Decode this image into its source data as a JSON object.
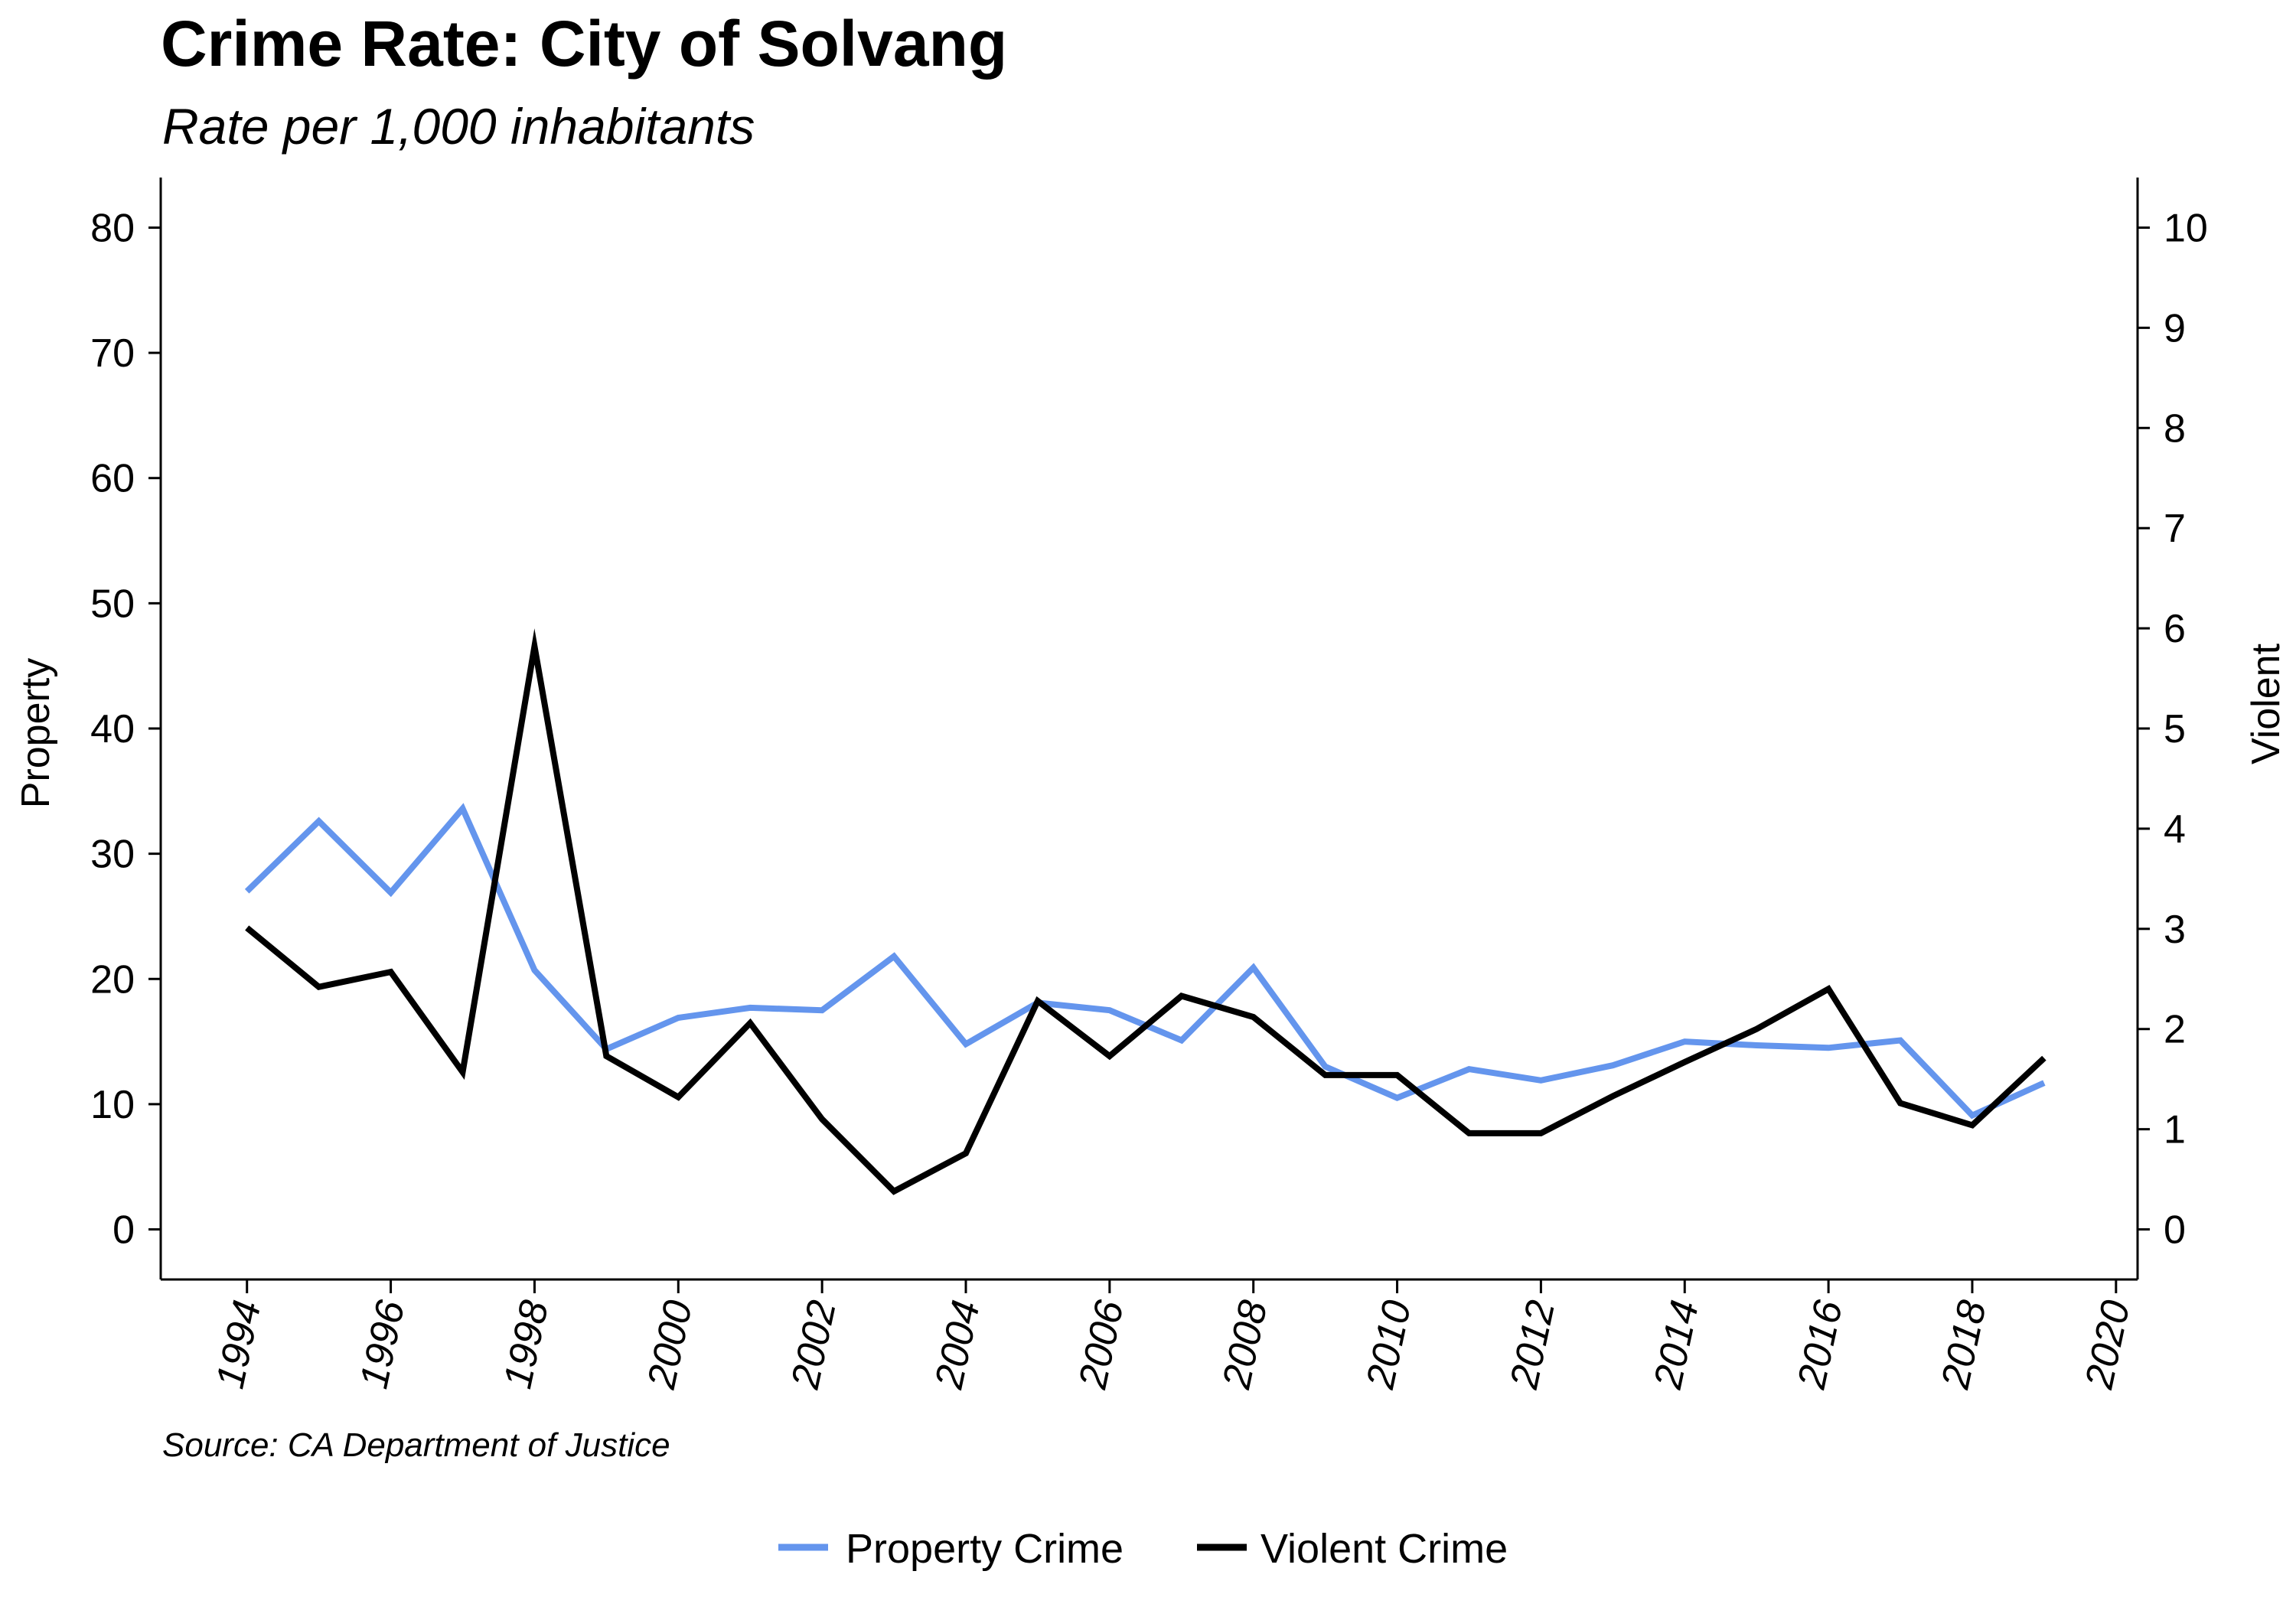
{
  "chart_data": {
    "type": "line",
    "title": "Crime Rate: City of Solvang",
    "subtitle": "Rate per 1,000 inhabitants",
    "source": "Source: CA Department of Justice",
    "ylabel_left": "Property",
    "ylabel_right": "Violent",
    "ylim_left": [
      -4,
      84
    ],
    "ylim_right": [
      -0.5,
      10.5
    ],
    "yticks_left": [
      0,
      10,
      20,
      30,
      40,
      50,
      60,
      70,
      80
    ],
    "yticks_right": [
      0,
      1,
      2,
      3,
      4,
      5,
      6,
      7,
      8,
      9,
      10
    ],
    "xlim": [
      1992.8,
      2020.3
    ],
    "xticks": [
      1994,
      1996,
      1998,
      2000,
      2002,
      2004,
      2006,
      2008,
      2010,
      2012,
      2014,
      2016,
      2018,
      2020
    ],
    "x": [
      1994,
      1995,
      1996,
      1997,
      1998,
      1999,
      2000,
      2001,
      2002,
      2003,
      2004,
      2005,
      2006,
      2007,
      2008,
      2009,
      2010,
      2011,
      2012,
      2013,
      2014,
      2015,
      2016,
      2017,
      2018,
      2019
    ],
    "series": [
      {
        "name": "Property Crime",
        "axis": "left",
        "color": "#6495ed",
        "values": [
          27.0,
          32.6,
          26.9,
          33.6,
          20.7,
          14.4,
          16.9,
          17.7,
          17.5,
          21.8,
          14.8,
          18.1,
          17.5,
          15.1,
          20.9,
          13.0,
          10.5,
          12.8,
          11.9,
          13.1,
          15.0,
          14.7,
          14.5,
          15.1,
          9.1,
          11.7
        ]
      },
      {
        "name": "Violent Crime",
        "axis": "right",
        "color": "#000000",
        "values": [
          3.01,
          2.42,
          2.57,
          1.57,
          5.82,
          1.73,
          1.32,
          2.06,
          1.1,
          0.38,
          0.76,
          2.28,
          1.73,
          2.33,
          2.12,
          1.54,
          1.54,
          0.96,
          0.96,
          1.33,
          1.67,
          2.0,
          2.4,
          1.26,
          1.04,
          1.71
        ]
      }
    ],
    "legend_position": "bottom-center",
    "grid": false
  }
}
